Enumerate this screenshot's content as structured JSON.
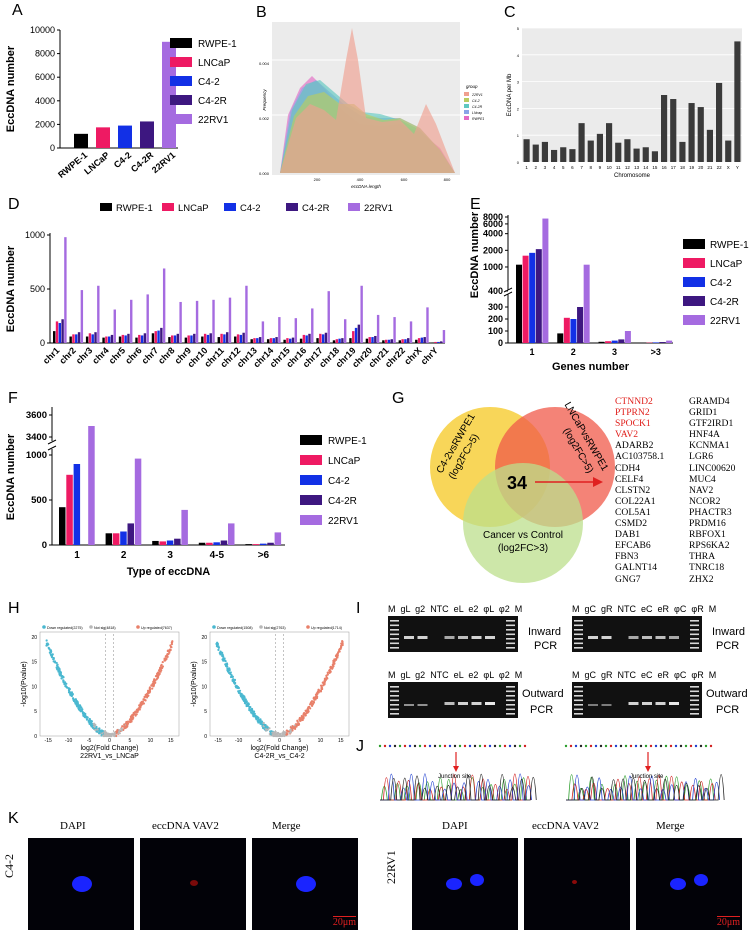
{
  "colors": {
    "RWPE-1": "#000000",
    "LNCaP": "#ee1a63",
    "C4-2": "#1230e6",
    "C4-2R": "#3d1780",
    "22RV1": "#a56be0"
  },
  "panel_labels": [
    "A",
    "B",
    "C",
    "D",
    "E",
    "F",
    "G",
    "H",
    "I",
    "J",
    "K"
  ],
  "panel_A": {
    "chart_data": {
      "type": "bar",
      "title": "",
      "ylabel": "EccDNA number",
      "ylim": [
        0,
        10000
      ],
      "yticks": [
        0,
        2000,
        4000,
        6000,
        8000,
        10000
      ],
      "categories": [
        "RWPE-1",
        "LNCaP",
        "C4-2",
        "C4-2R",
        "22RV1"
      ],
      "values": [
        1200,
        1750,
        1900,
        2250,
        9000
      ]
    },
    "legend": [
      "RWPE-1",
      "LNCaP",
      "C4-2",
      "C4-2R",
      "22RV1"
    ]
  },
  "panel_B": {
    "chart_data": {
      "type": "area",
      "xlabel": "eccDNA length",
      "ylabel": "Frequency",
      "yticks": [
        "0.000",
        "0.002",
        "0.004"
      ],
      "xticks": [
        "200",
        "400",
        "600",
        "800"
      ],
      "series": [
        {
          "name": "22RV1",
          "color": "#f0a090"
        },
        {
          "name": "C4-2",
          "color": "#b9cc60"
        },
        {
          "name": "C4-2R",
          "color": "#60c8c0"
        },
        {
          "name": "LNcap",
          "color": "#8aa4e8"
        },
        {
          "name": "RWPE1",
          "color": "#e36bc4"
        }
      ]
    },
    "legend_title": "group",
    "legend": [
      "22RV1",
      "C4-2",
      "C4-2R",
      "LNcap",
      "RWPE1"
    ]
  },
  "panel_C": {
    "chart_data": {
      "type": "bar",
      "xlabel": "Chromosome",
      "ylabel": "EccDNA per Mb",
      "ylim": [
        0,
        5
      ],
      "yticks": [
        0,
        1,
        2,
        3,
        4,
        5
      ],
      "categories": [
        "1",
        "2",
        "3",
        "4",
        "5",
        "6",
        "7",
        "8",
        "9",
        "10",
        "11",
        "12",
        "13",
        "14",
        "15",
        "16",
        "17",
        "18",
        "19",
        "20",
        "21",
        "22",
        "X",
        "Y"
      ],
      "values": [
        0.85,
        0.65,
        0.75,
        0.45,
        0.55,
        0.48,
        1.45,
        0.8,
        1.05,
        1.45,
        0.72,
        0.85,
        0.5,
        0.55,
        0.4,
        2.5,
        2.35,
        0.75,
        2.2,
        2.05,
        1.2,
        2.95,
        0.8,
        4.5
      ]
    }
  },
  "panel_D": {
    "chart_data": {
      "type": "bar",
      "ylabel": "EccDNA number",
      "ylim": [
        0,
        1000
      ],
      "yticks": [
        0,
        500,
        1000
      ],
      "categories": [
        "chr1",
        "chr2",
        "chr3",
        "chr4",
        "chr5",
        "chr6",
        "chr7",
        "chr8",
        "chr9",
        "chr10",
        "chr11",
        "chr12",
        "chr13",
        "chr14",
        "chr15",
        "chr16",
        "chr17",
        "chr18",
        "chr19",
        "chr20",
        "chr21",
        "chr22",
        "chrX",
        "chrY"
      ],
      "series": [
        {
          "name": "RWPE-1",
          "values": [
            110,
            60,
            60,
            50,
            60,
            50,
            90,
            55,
            50,
            60,
            55,
            60,
            35,
            35,
            30,
            40,
            45,
            25,
            45,
            40,
            25,
            25,
            30,
            5
          ]
        },
        {
          "name": "LNCaP",
          "values": [
            200,
            80,
            90,
            60,
            75,
            75,
            110,
            70,
            70,
            85,
            85,
            80,
            45,
            45,
            45,
            75,
            85,
            35,
            110,
            55,
            30,
            35,
            45,
            10
          ]
        },
        {
          "name": "C4-2",
          "values": [
            185,
            80,
            80,
            60,
            70,
            70,
            115,
            70,
            70,
            75,
            80,
            75,
            45,
            45,
            40,
            70,
            80,
            40,
            140,
            55,
            30,
            35,
            50,
            10
          ]
        },
        {
          "name": "C4-2R",
          "values": [
            220,
            100,
            100,
            75,
            85,
            90,
            140,
            85,
            85,
            90,
            100,
            95,
            55,
            55,
            50,
            85,
            95,
            45,
            170,
            65,
            35,
            45,
            55,
            15
          ]
        },
        {
          "name": "22RV1",
          "values": [
            980,
            490,
            530,
            310,
            400,
            450,
            690,
            380,
            390,
            400,
            420,
            530,
            200,
            240,
            230,
            320,
            480,
            220,
            530,
            260,
            240,
            200,
            330,
            120
          ]
        }
      ]
    },
    "legend": [
      "RWPE-1",
      "LNCaP",
      "C4-2",
      "C4-2R",
      "22RV1"
    ]
  },
  "panel_E": {
    "chart_data": {
      "type": "bar",
      "xlabel": "Genes number",
      "ylabel": "EccDNA number",
      "yticks": [
        "0",
        "100",
        "200",
        "300",
        "400",
        "1000",
        "2000",
        "4000",
        "6000",
        "8000"
      ],
      "categories": [
        "1",
        "2",
        "3",
        ">3"
      ],
      "series": [
        {
          "name": "RWPE-1",
          "values": [
            1100,
            80,
            10,
            2
          ]
        },
        {
          "name": "LNCaP",
          "values": [
            1600,
            210,
            15,
            3
          ]
        },
        {
          "name": "C4-2",
          "values": [
            1800,
            200,
            20,
            5
          ]
        },
        {
          "name": "C4-2R",
          "values": [
            2100,
            300,
            30,
            8
          ]
        },
        {
          "name": "22RV1",
          "values": [
            7500,
            1100,
            100,
            20
          ]
        }
      ]
    },
    "legend": [
      "RWPE-1",
      "LNCaP",
      "C4-2",
      "C4-2R",
      "22RV1"
    ]
  },
  "panel_F": {
    "chart_data": {
      "type": "bar",
      "xlabel": "Type of eccDNA",
      "ylabel": "EccDNA number",
      "yticks": [
        "0",
        "500",
        "1000",
        "3400",
        "3600"
      ],
      "categories": [
        "1",
        "2",
        "3",
        "4-5",
        ">6"
      ],
      "series": [
        {
          "name": "RWPE-1",
          "values": [
            420,
            130,
            45,
            25,
            10
          ]
        },
        {
          "name": "LNCaP",
          "values": [
            780,
            130,
            40,
            25,
            10
          ]
        },
        {
          "name": "C4-2",
          "values": [
            900,
            150,
            50,
            30,
            15
          ]
        },
        {
          "name": "C4-2R",
          "values": [
            1010,
            240,
            70,
            50,
            25
          ]
        },
        {
          "name": "22RV1",
          "values": [
            3500,
            960,
            390,
            240,
            140
          ]
        }
      ]
    },
    "legend": [
      "RWPE-1",
      "LNCaP",
      "C4-2",
      "C4-2R",
      "22RV1"
    ]
  },
  "panel_G": {
    "circle_a": "C4-2vsRWPE1\n(log2FC>5)",
    "circle_b": "LNCaPvsRWPE1\n(log2FC>5)",
    "circle_c": "Cancer vs Control\n(log2FC>3)",
    "center": "34",
    "genes_red": [
      "CTNND2",
      "PTPRN2",
      "SPOCK1",
      "VAV2"
    ],
    "genes_col1": [
      "ADARB2",
      "AC103758.1",
      "CDH4",
      "CELF4",
      "CLSTN2",
      "COL22A1",
      "COL5A1",
      "CSMD2",
      "DAB1",
      "EFCAB6",
      "FBN3",
      "GALNT14",
      "GNG7"
    ],
    "genes_col2": [
      "GRAMD4",
      "GRID1",
      "GTF2IRD1",
      "HNF4A",
      "KCNMA1",
      "LGR6",
      "LINC00620",
      "MUC4",
      "NAV2",
      "NCOR2",
      "PHACTR3",
      "PRDM16",
      "RBFOX1",
      "RPS6KA2",
      "THRA",
      "TNRC18",
      "ZHX2"
    ]
  },
  "panel_H": {
    "left": {
      "legend": [
        "Down regulated(2275)",
        "Not sig(4818)",
        "Up regulated(7637)"
      ],
      "xlabel1": "log2(Fold Change)",
      "xlabel2": "22RV1_vs_LNCaP",
      "ylabel": "-log10(Pvalue)",
      "yticks": [
        "0",
        "5",
        "10",
        "15",
        "20"
      ],
      "xticks": [
        "-15",
        "-10",
        "-5",
        "0",
        "5",
        "10",
        "15"
      ]
    },
    "right": {
      "legend": [
        "Down regulated(1508)",
        "Not sig(2763)",
        "Up regulated(1714)"
      ],
      "xlabel1": "log2(Fold Change)",
      "xlabel2": "C4-2R_vs_C4-2",
      "ylabel": "-log10(Pvalue)",
      "yticks": [
        "0",
        "5",
        "10",
        "15",
        "20"
      ],
      "xticks": [
        "-15",
        "-10",
        "-5",
        "0",
        "5",
        "10",
        "15"
      ]
    },
    "colors": {
      "down": "#4ab8d0",
      "ns": "#b8b8b8",
      "up": "#e8806a"
    }
  },
  "panel_I": {
    "lanes_left": "M  gL  g2  NTC  eL  e2  φL  φ2  M",
    "lanes_right": "M  gC  gR  NTC  eC  eR  φC  φR  M",
    "inward": "Inward",
    "outward": "Outward",
    "pcr": "PCR"
  },
  "panel_J": {
    "junction": "Junction site"
  },
  "panel_K": {
    "row1": "C4-2",
    "row2": "22RV1",
    "titles": [
      "DAPI",
      "eccDNA VAV2",
      "Merge"
    ],
    "scale": "20μm"
  }
}
